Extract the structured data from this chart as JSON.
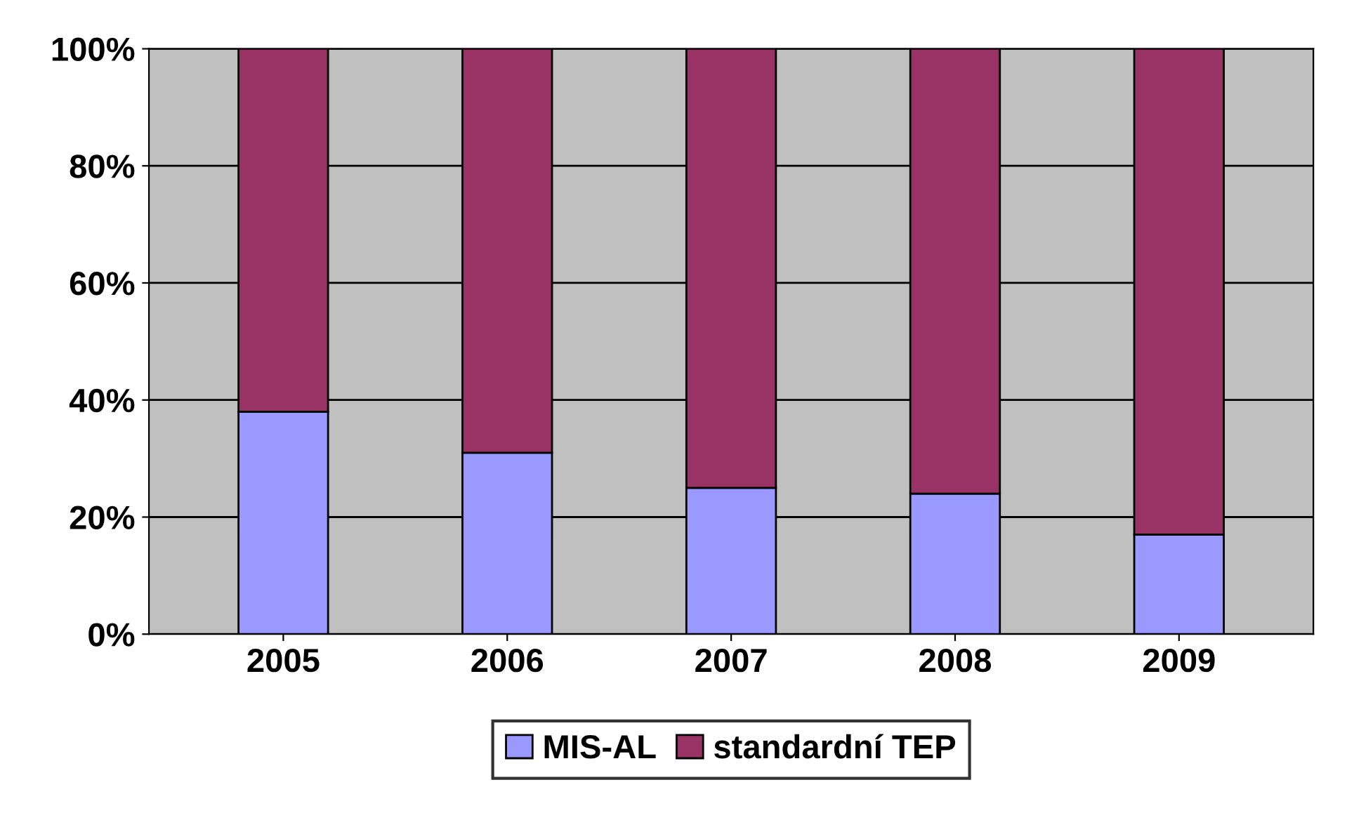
{
  "chart_data": {
    "type": "bar",
    "stacked": true,
    "categories": [
      "2005",
      "2006",
      "2007",
      "2008",
      "2009"
    ],
    "series": [
      {
        "name": "MIS-AL",
        "color": "#9999ff",
        "values": [
          38,
          31,
          25,
          24,
          17
        ]
      },
      {
        "name": "standardní TEP",
        "color": "#993366",
        "values": [
          62,
          69,
          75,
          76,
          83
        ]
      }
    ],
    "ylim": [
      0,
      100
    ],
    "yticks": [
      {
        "value": 0,
        "label": "0%"
      },
      {
        "value": 20,
        "label": "20%"
      },
      {
        "value": 40,
        "label": "40%"
      },
      {
        "value": 60,
        "label": "60%"
      },
      {
        "value": 80,
        "label": "80%"
      },
      {
        "value": 100,
        "label": "100%"
      }
    ],
    "grid": "y",
    "legend": "bottom"
  }
}
